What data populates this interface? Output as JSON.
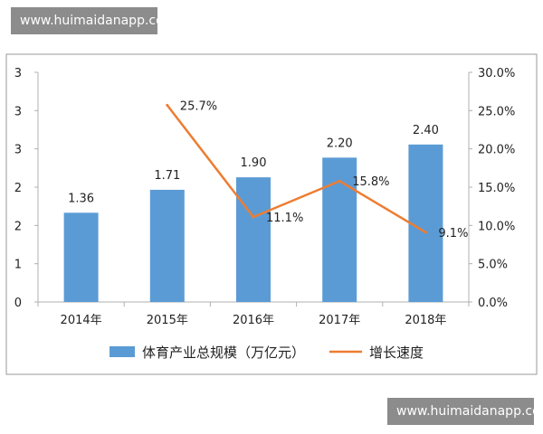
{
  "watermark_top": "www.huimaidanapp.com",
  "watermark_bottom": "www.huimaidanapp.com",
  "colors": {
    "bar": "#5b9bd5",
    "line": "#ed7d31",
    "axis": "#b0b0b0",
    "frame": "#9a9a9a"
  },
  "chart_data": {
    "type": "bar",
    "categories": [
      "2014年",
      "2015年",
      "2016年",
      "2017年",
      "2018年"
    ],
    "series": [
      {
        "name": "体育产业总规模（万亿元）",
        "type": "bar",
        "axis": "left",
        "values": [
          1.36,
          1.71,
          1.9,
          2.2,
          2.4
        ],
        "labels": [
          "1.36",
          "1.71",
          "1.90",
          "2.20",
          "2.40"
        ]
      },
      {
        "name": "增长速度",
        "type": "line",
        "axis": "right",
        "values": [
          null,
          25.7,
          11.1,
          15.8,
          9.1
        ],
        "labels": [
          "",
          "25.7%",
          "11.1%",
          "15.8%",
          "9.1%"
        ]
      }
    ],
    "y_left": {
      "ticks": [
        "0",
        "1",
        "2",
        "2",
        "3",
        "3",
        "3"
      ]
    },
    "y_right": {
      "min": 0,
      "max": 30,
      "ticks": [
        "0.0%",
        "5.0%",
        "10.0%",
        "15.0%",
        "20.0%",
        "25.0%",
        "30.0%"
      ]
    },
    "grid": false,
    "legend": "bottom"
  }
}
